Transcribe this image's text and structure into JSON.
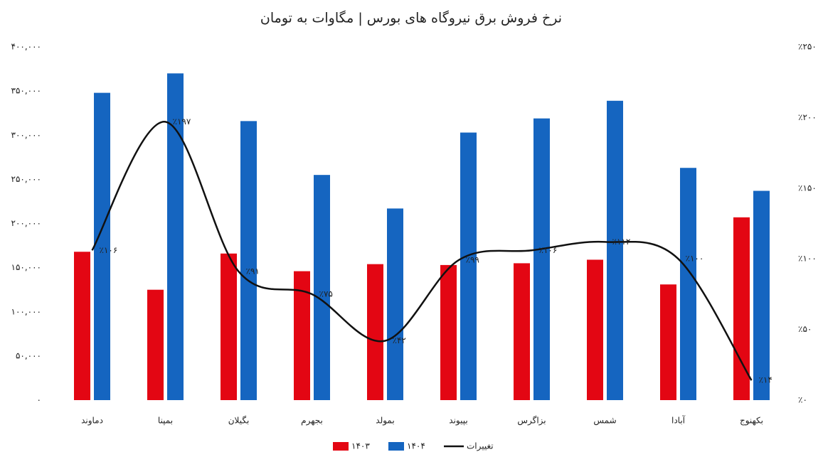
{
  "chart_data": {
    "type": "bar-line",
    "title": "نرخ فروش برق نیروگاه های بورس | مگاوات به تومان",
    "categories": [
      "دماوند",
      "بمپنا",
      "بگیلان",
      "بجهرم",
      "بمولد",
      "بپیوند",
      "بزاگرس",
      "شمس",
      "آبادا",
      "بکهنوج"
    ],
    "series": [
      {
        "name": "۱۴۰۳",
        "color": "#e30613",
        "values": [
          168000,
          125000,
          166000,
          146000,
          154000,
          153000,
          155000,
          159000,
          131000,
          207000
        ]
      },
      {
        "name": "۱۴۰۴",
        "color": "#1565c0",
        "values": [
          348000,
          370000,
          316000,
          255000,
          217000,
          303000,
          319000,
          339000,
          263000,
          237000
        ]
      },
      {
        "name": "تغییرات",
        "color": "#111111",
        "axis": "y2",
        "values": [
          106,
          197,
          91,
          75,
          42,
          99,
          106,
          112,
          100,
          14
        ],
        "value_labels": [
          "٪۱۰۶",
          "٪۱۹۷",
          "٪۹۱",
          "٪۷۵",
          "٪۴۲",
          "٪۹۹",
          "٪۱۰۶",
          "٪۱۱۲",
          "٪۱۰۰",
          "٪۱۴"
        ]
      }
    ],
    "ylim": [
      0,
      400000
    ],
    "yticks": [
      {
        "value": 0,
        "label": "۰"
      },
      {
        "value": 50000,
        "label": "۵۰,۰۰۰"
      },
      {
        "value": 100000,
        "label": "۱۰۰,۰۰۰"
      },
      {
        "value": 150000,
        "label": "۱۵۰,۰۰۰"
      },
      {
        "value": 200000,
        "label": "۲۰۰,۰۰۰"
      },
      {
        "value": 250000,
        "label": "۲۵۰,۰۰۰"
      },
      {
        "value": 300000,
        "label": "۳۰۰,۰۰۰"
      },
      {
        "value": 350000,
        "label": "۳۵۰,۰۰۰"
      },
      {
        "value": 400000,
        "label": "۴۰۰,۰۰۰"
      }
    ],
    "y2lim": [
      0,
      250
    ],
    "y2ticks": [
      {
        "value": 0,
        "label": "٪۰"
      },
      {
        "value": 50,
        "label": "٪۵۰"
      },
      {
        "value": 100,
        "label": "٪۱۰۰"
      },
      {
        "value": 150,
        "label": "٪۱۵۰"
      },
      {
        "value": 200,
        "label": "٪۲۰۰"
      },
      {
        "value": 250,
        "label": "٪۲۵۰"
      }
    ],
    "legend": "bottom"
  }
}
